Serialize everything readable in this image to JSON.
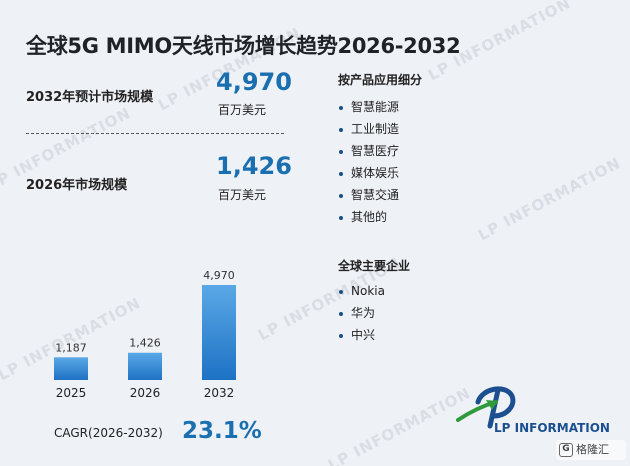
{
  "title": "全球5G MIMO天线市场增长趋势2026-2032",
  "metric_2032": {
    "label": "2032年预计市场规模",
    "value": "4,970",
    "unit": "百万美元"
  },
  "metric_2026": {
    "label": "2026年市场规模",
    "value": "1,426",
    "unit": "百万美元"
  },
  "segments": {
    "title": "按产品应用细分",
    "items": [
      "智慧能源",
      "工业制造",
      "智慧医疗",
      "媒体娱乐",
      "智慧交通",
      "其他的"
    ]
  },
  "companies": {
    "title": "全球主要企业",
    "items": [
      "Nokia",
      "华为",
      "中兴"
    ]
  },
  "cagr": {
    "label": "CAGR(2026-2032)",
    "value": "23.1%"
  },
  "logo": {
    "text": "LP INFORMATION"
  },
  "watermark_text": "LP INFORMATION",
  "badge_text": "格隆汇",
  "colors": {
    "accent": "#1a6fb0",
    "bar_top": "#5aa8e6",
    "bar_bottom": "#1e72c4",
    "logo_green": "#2e9a3c"
  },
  "chart_data": {
    "type": "bar",
    "categories": [
      "2025",
      "2026",
      "2032"
    ],
    "values": [
      1187,
      1426,
      4970
    ],
    "value_labels": [
      "1,187",
      "1,426",
      "4,970"
    ],
    "ylim": [
      0,
      4970
    ],
    "grid": false,
    "title": "",
    "xlabel": "",
    "ylabel": ""
  }
}
